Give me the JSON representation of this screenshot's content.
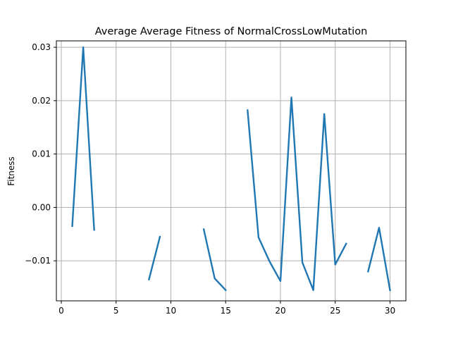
{
  "chart_data": {
    "type": "line",
    "title": "Average Average Fitness of NormalCrossLowMutation",
    "xlabel": "",
    "ylabel": "Fitness",
    "xlim": [
      -0.45,
      31.45
    ],
    "ylim": [
      -0.0175,
      0.0312
    ],
    "grid": true,
    "x_ticks": [
      0,
      5,
      10,
      15,
      20,
      25,
      30
    ],
    "x_tick_labels": [
      "0",
      "5",
      "10",
      "15",
      "20",
      "25",
      "30"
    ],
    "y_ticks": [
      -0.01,
      0.0,
      0.01,
      0.02,
      0.03
    ],
    "y_tick_labels": [
      "−0.01",
      "0.00",
      "0.01",
      "0.02",
      "0.03"
    ],
    "series": [
      {
        "name": "Average Fitness",
        "color": "#1f77b4",
        "x": [
          1,
          2,
          3,
          4,
          5,
          6,
          7,
          8,
          9,
          10,
          11,
          12,
          13,
          14,
          15,
          16,
          17,
          18,
          19,
          20,
          21,
          22,
          23,
          24,
          25,
          26,
          27,
          28,
          29,
          30
        ],
        "values": [
          -0.0035,
          0.03,
          -0.0042,
          null,
          null,
          null,
          null,
          -0.0135,
          -0.0055,
          null,
          null,
          null,
          -0.0041,
          -0.0133,
          -0.0155,
          null,
          0.0182,
          -0.0056,
          -0.0101,
          -0.0138,
          0.0206,
          -0.0103,
          -0.0155,
          0.0175,
          -0.0107,
          -0.0068,
          null,
          -0.012,
          -0.0038,
          -0.0155
        ]
      }
    ]
  }
}
